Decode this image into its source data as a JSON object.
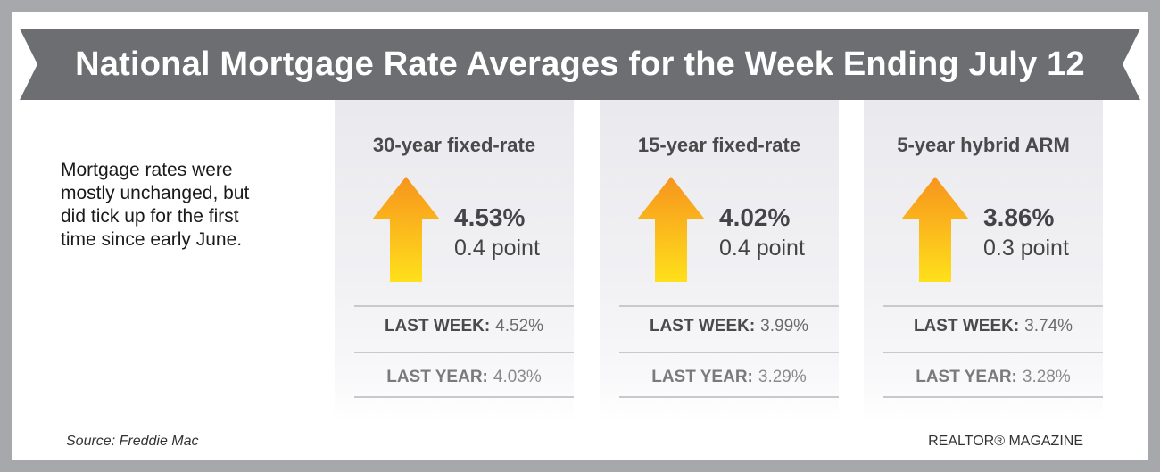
{
  "title": "National Mortgage Rate Averages for the Week Ending July 12",
  "intro_lines": [
    "Mortgage rates were",
    "mostly unchanged, but",
    "did tick up for the first",
    "time since early June."
  ],
  "panels": [
    {
      "title": "30-year fixed-rate",
      "rate": "4.53%",
      "change": "0.4 point",
      "direction": "up",
      "last_week_label": "LAST WEEK:",
      "last_week_value": "4.52%",
      "last_year_label": "LAST YEAR:",
      "last_year_value": "4.03%"
    },
    {
      "title": "15-year fixed-rate",
      "rate": "4.02%",
      "change": "0.4 point",
      "direction": "up",
      "last_week_label": "LAST WEEK:",
      "last_week_value": "3.99%",
      "last_year_label": "LAST YEAR:",
      "last_year_value": "3.29%"
    },
    {
      "title": "5-year hybrid ARM",
      "rate": "3.86%",
      "change": "0.3 point",
      "direction": "up",
      "last_week_label": "LAST WEEK:",
      "last_week_value": "3.74%",
      "last_year_label": "LAST YEAR:",
      "last_year_value": "3.28%"
    }
  ],
  "source": "Source: Freddie Mac",
  "brand": "REALTOR® MAGAZINE",
  "icons": {
    "arrow": "up-arrow-icon"
  },
  "colors": {
    "frame": "#a7a8ab",
    "banner": "#6d6e71",
    "arrow_top": "#f7941d",
    "arrow_bottom": "#ffe01b"
  }
}
